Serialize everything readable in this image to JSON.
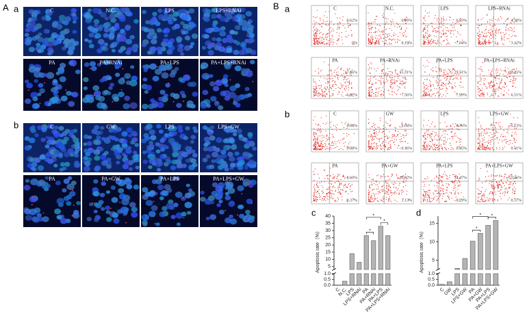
{
  "panel_a": {
    "label": "A",
    "groups": [
      {
        "label": "a",
        "rows": [
          [
            "C",
            "N.C.",
            "LPS",
            "LPS+RNAi"
          ],
          [
            "PA",
            "PA+RNAi",
            "PA+LPS",
            "PA+LPS+RNAi"
          ]
        ]
      },
      {
        "label": "b",
        "rows": [
          [
            "C",
            "GW",
            "LPS",
            "LPS+GW"
          ],
          [
            "PA",
            "PA+GW",
            "PA+LPS",
            "PA+LPS+GW"
          ]
        ]
      }
    ]
  },
  "panel_b": {
    "label": "B",
    "groups": [
      {
        "label": "a",
        "rows": [
          [
            {
              "name": "C",
              "upper_right": "0.62%",
              "lower_right": "0%"
            },
            {
              "name": "N.C.",
              "upper_right": "6.16%",
              "lower_right": "0.19%"
            },
            {
              "name": "LPS",
              "upper_right": "6.93%",
              "lower_right": "7.04%"
            },
            {
              "name": "LPS+RNAi",
              "upper_right": "4.30%",
              "lower_right": "3.12%"
            }
          ],
          [
            {
              "name": "PA",
              "upper_right": "17.66%",
              "lower_right": "6.82%"
            },
            {
              "name": "PA+RNAi",
              "upper_right": "15.51%",
              "lower_right": "7.56%"
            },
            {
              "name": "PA+LPS",
              "upper_right": "25.51%",
              "lower_right": "7.99%"
            },
            {
              "name": "PA+LPS+RNAi",
              "upper_right": "20.25%",
              "lower_right": "6.51%"
            }
          ]
        ]
      },
      {
        "label": "b",
        "rows": [
          [
            {
              "name": "C",
              "upper_right": "0.04%",
              "lower_right": "0.08%"
            },
            {
              "name": "GW",
              "upper_right": "0.04%",
              "lower_right": "0.16%"
            },
            {
              "name": "LPS",
              "upper_right": "0.76%",
              "lower_right": "0.45%"
            },
            {
              "name": "LPS+GW",
              "upper_right": "5.13%",
              "lower_right": "0.41%"
            }
          ],
          [
            {
              "name": "PA",
              "upper_right": "8.60%",
              "lower_right": "0.37%"
            },
            {
              "name": "PA+GW",
              "upper_right": "10.92%",
              "lower_right": "1.13%"
            },
            {
              "name": "PA+LPS",
              "upper_right": "14.47%",
              "lower_right": "0.29%"
            },
            {
              "name": "PA+LPS+GW",
              "upper_right": "15.46%",
              "lower_right": "0.37%"
            }
          ]
        ]
      }
    ]
  },
  "chart_data": [
    {
      "type": "bar",
      "label": "c",
      "y_label": "Apoptosis rate（%）",
      "color": "#b4b4b4",
      "categories": [
        "C",
        "N.C.",
        "LPS",
        "LPS+RNAi",
        "PA",
        "PA+RNAi",
        "PA+LPS",
        "PA+LPS+RNAi"
      ],
      "values": [
        0.02,
        0.35,
        14,
        8,
        26.5,
        23,
        33,
        26.5
      ],
      "ylim": [
        0,
        40
      ],
      "axis_break": [
        1,
        3
      ],
      "yticks": [
        {
          "value": 0,
          "label": "0.0"
        },
        0.5,
        {
          "value": 1,
          "label": "1.0"
        },
        5,
        10,
        15,
        20,
        25,
        30,
        35,
        40
      ],
      "annotations": [
        "*",
        "*",
        "*"
      ]
    },
    {
      "type": "bar",
      "label": "d",
      "y_label": "Apoptosis rate（%）",
      "color": "#b4b4b4",
      "categories": [
        "C",
        "GW",
        "LPS",
        "LPS+GW",
        "PA",
        "PA+GW",
        "PA+LPS",
        "PA+LPS+GW"
      ],
      "values": [
        0.08,
        0.3,
        2.8,
        5.5,
        10.2,
        12.3,
        14.5,
        15.8
      ],
      "ylim": [
        0,
        17
      ],
      "axis_break": [
        1,
        2.5
      ],
      "yticks": [
        {
          "value": 0,
          "label": "0.0"
        },
        0.5,
        {
          "value": 1,
          "label": "1.0"
        },
        5,
        10,
        15
      ],
      "annotations": [
        "*",
        "*",
        "*"
      ]
    }
  ]
}
